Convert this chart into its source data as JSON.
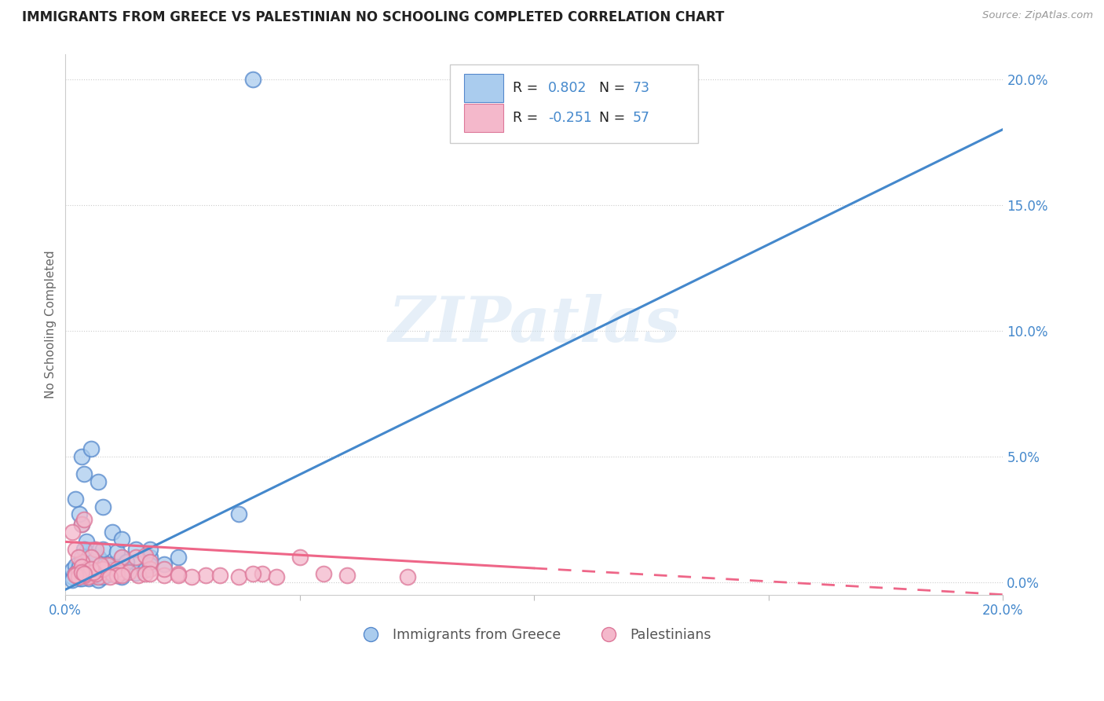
{
  "title": "IMMIGRANTS FROM GREECE VS PALESTINIAN NO SCHOOLING COMPLETED CORRELATION CHART",
  "source": "Source: ZipAtlas.com",
  "ylabel": "No Schooling Completed",
  "right_axis_ticks": [
    "0.0%",
    "5.0%",
    "10.0%",
    "15.0%",
    "20.0%"
  ],
  "right_axis_values": [
    0.0,
    5.0,
    10.0,
    15.0,
    20.0
  ],
  "xmin": 0.0,
  "xmax": 20.0,
  "ymin": -0.5,
  "ymax": 21.0,
  "blue_fill_color": "#aaccee",
  "blue_edge_color": "#5588cc",
  "pink_fill_color": "#f4b8cb",
  "pink_edge_color": "#dd7799",
  "blue_line_color": "#4488cc",
  "pink_line_color": "#ee6688",
  "legend_R_color": "#222222",
  "legend_N_color": "#4488cc",
  "R_blue": 0.802,
  "N_blue": 73,
  "R_pink": -0.251,
  "N_pink": 57,
  "legend_label_blue": "Immigrants from Greece",
  "legend_label_pink": "Palestinians",
  "watermark": "ZIPatlas",
  "blue_line_x0": 0.0,
  "blue_line_y0": -0.3,
  "blue_line_x1": 20.0,
  "blue_line_y1": 18.0,
  "pink_line_x0": 0.0,
  "pink_line_y0": 1.6,
  "pink_line_x1": 20.0,
  "pink_line_y1": -0.5,
  "pink_solid_end": 10.0,
  "blue_scatter": [
    [
      0.15,
      0.2
    ],
    [
      0.25,
      0.3
    ],
    [
      0.3,
      0.15
    ],
    [
      0.4,
      0.5
    ],
    [
      0.5,
      0.3
    ],
    [
      0.6,
      0.4
    ],
    [
      0.7,
      0.3
    ],
    [
      0.5,
      0.6
    ],
    [
      0.8,
      0.5
    ],
    [
      0.6,
      0.2
    ],
    [
      0.9,
      0.3
    ],
    [
      0.8,
      0.8
    ],
    [
      0.35,
      1.0
    ],
    [
      0.45,
      1.2
    ],
    [
      1.2,
      0.4
    ],
    [
      1.1,
      0.6
    ],
    [
      1.3,
      0.5
    ],
    [
      0.25,
      0.4
    ],
    [
      0.4,
      0.3
    ],
    [
      0.7,
      1.0
    ],
    [
      1.0,
      0.7
    ],
    [
      1.5,
      0.35
    ],
    [
      0.7,
      0.5
    ],
    [
      0.6,
      1.3
    ],
    [
      0.45,
      1.6
    ],
    [
      1.2,
      1.0
    ],
    [
      0.8,
      1.3
    ],
    [
      1.1,
      1.2
    ],
    [
      0.65,
      0.8
    ],
    [
      1.5,
      0.8
    ],
    [
      1.8,
      1.0
    ],
    [
      1.7,
      0.5
    ],
    [
      1.0,
      2.0
    ],
    [
      0.35,
      2.3
    ],
    [
      2.1,
      0.7
    ],
    [
      0.3,
      2.7
    ],
    [
      0.22,
      3.3
    ],
    [
      2.4,
      1.0
    ],
    [
      1.2,
      1.7
    ],
    [
      1.8,
      1.3
    ],
    [
      0.4,
      4.3
    ],
    [
      0.35,
      5.0
    ],
    [
      0.55,
      5.3
    ],
    [
      0.7,
      4.0
    ],
    [
      3.7,
      2.7
    ],
    [
      0.8,
      3.0
    ],
    [
      0.5,
      0.15
    ],
    [
      0.7,
      0.08
    ],
    [
      0.15,
      0.5
    ],
    [
      0.22,
      0.65
    ],
    [
      0.55,
      0.35
    ],
    [
      0.65,
      0.28
    ],
    [
      1.0,
      0.48
    ],
    [
      1.2,
      0.2
    ],
    [
      0.3,
      0.2
    ],
    [
      0.45,
      0.48
    ],
    [
      0.75,
      0.6
    ],
    [
      0.5,
      0.87
    ],
    [
      0.85,
      0.4
    ],
    [
      1.5,
      1.3
    ],
    [
      0.15,
      0.07
    ],
    [
      0.35,
      0.15
    ],
    [
      1.8,
      0.67
    ],
    [
      1.2,
      0.52
    ],
    [
      1.0,
      0.33
    ],
    [
      0.55,
      1.0
    ],
    [
      0.8,
      0.2
    ],
    [
      4.0,
      20.0
    ],
    [
      0.22,
      0.33
    ],
    [
      0.3,
      0.6
    ],
    [
      1.1,
      0.28
    ],
    [
      1.3,
      0.8
    ],
    [
      0.4,
      1.3
    ]
  ],
  "pink_scatter": [
    [
      0.22,
      0.33
    ],
    [
      0.35,
      2.3
    ],
    [
      0.4,
      2.5
    ],
    [
      0.55,
      0.28
    ],
    [
      0.7,
      0.2
    ],
    [
      1.0,
      0.33
    ],
    [
      1.2,
      0.4
    ],
    [
      1.5,
      1.0
    ],
    [
      1.7,
      1.05
    ],
    [
      1.8,
      0.52
    ],
    [
      2.1,
      0.28
    ],
    [
      2.4,
      0.33
    ],
    [
      3.0,
      0.28
    ],
    [
      3.7,
      0.2
    ],
    [
      4.2,
      0.33
    ],
    [
      5.0,
      1.0
    ],
    [
      0.28,
      0.4
    ],
    [
      0.4,
      0.52
    ],
    [
      0.75,
      0.48
    ],
    [
      0.9,
      0.67
    ],
    [
      1.2,
      1.0
    ],
    [
      0.65,
      1.3
    ],
    [
      0.55,
      1.0
    ],
    [
      1.1,
      0.52
    ],
    [
      0.35,
      0.8
    ],
    [
      1.8,
      0.8
    ],
    [
      2.1,
      0.52
    ],
    [
      2.7,
      0.2
    ],
    [
      0.22,
      1.3
    ],
    [
      0.28,
      1.0
    ],
    [
      0.35,
      0.6
    ],
    [
      0.48,
      0.2
    ],
    [
      0.65,
      0.33
    ],
    [
      0.8,
      0.52
    ],
    [
      1.1,
      0.28
    ],
    [
      1.35,
      0.4
    ],
    [
      1.55,
      0.28
    ],
    [
      1.7,
      0.33
    ],
    [
      0.15,
      2.0
    ],
    [
      3.3,
      0.28
    ],
    [
      4.0,
      0.33
    ],
    [
      4.5,
      0.2
    ],
    [
      5.5,
      0.33
    ],
    [
      6.0,
      0.28
    ],
    [
      7.3,
      0.2
    ],
    [
      0.4,
      0.28
    ],
    [
      0.6,
      0.4
    ],
    [
      0.95,
      0.2
    ],
    [
      1.2,
      0.28
    ],
    [
      0.55,
      0.52
    ],
    [
      1.8,
      0.33
    ],
    [
      2.4,
      0.28
    ],
    [
      0.28,
      0.2
    ],
    [
      0.22,
      0.28
    ],
    [
      0.35,
      0.4
    ],
    [
      0.4,
      0.33
    ],
    [
      0.75,
      0.67
    ]
  ]
}
